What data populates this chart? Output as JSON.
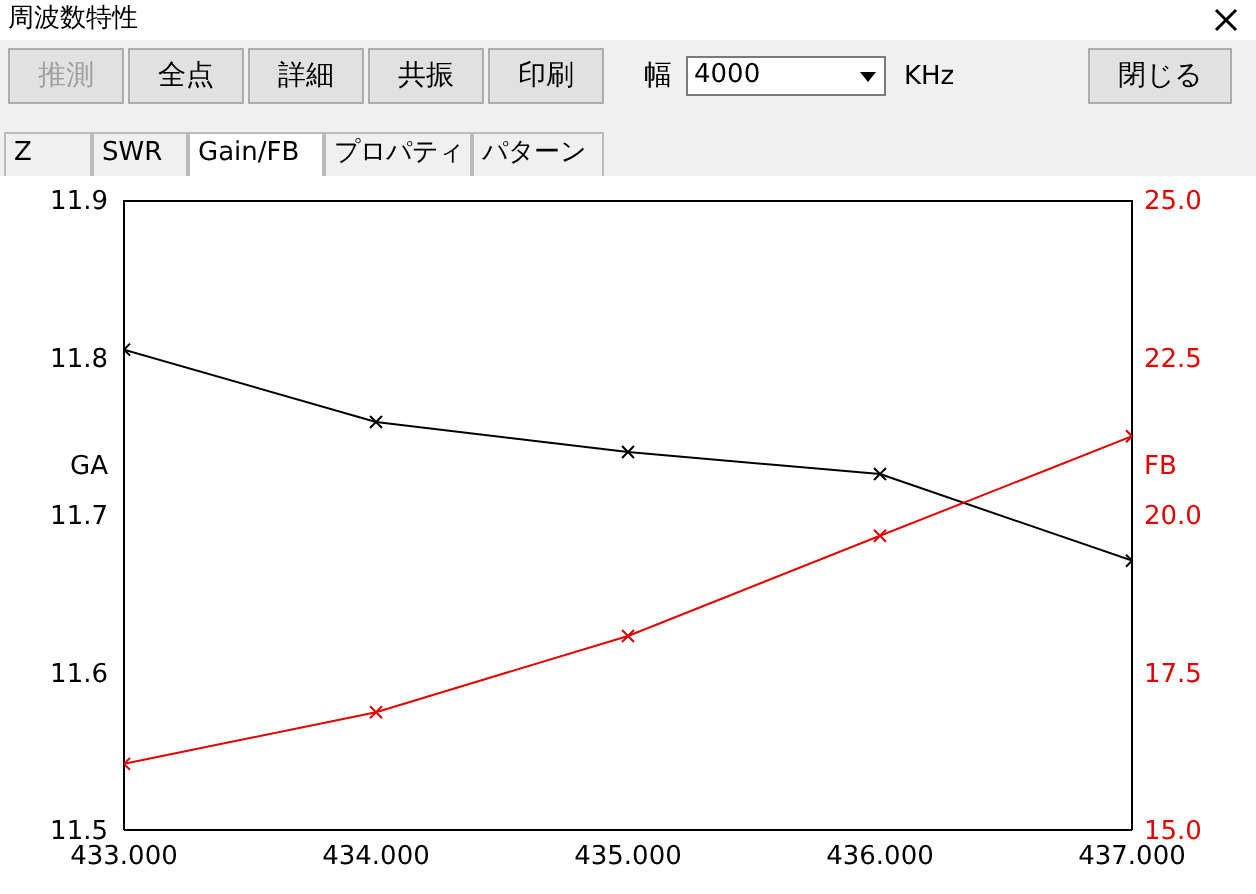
{
  "chart_data": {
    "type": "line",
    "title": "周波数特性",
    "ylabel": "GA",
    "y2label": "FB",
    "annotations": [
      "推測",
      "全点",
      "詳細",
      "共振",
      "印刷",
      "幅",
      "4000",
      "KHz",
      "閉じる",
      "Z",
      "SWR",
      "Gain/FB",
      "プロパティ",
      "パターン"
    ],
    "x": [
      433,
      434,
      435,
      436,
      437
    ],
    "xlim": [
      433,
      437
    ],
    "xticks": [
      {
        "value": 433,
        "label": "433.000"
      },
      {
        "value": 434,
        "label": "434.000"
      },
      {
        "value": 435,
        "label": "435.000"
      },
      {
        "value": 436,
        "label": "436.000"
      },
      {
        "value": 437,
        "label": "437.000"
      }
    ],
    "ylim": [
      11.5,
      11.9
    ],
    "yticks": [
      {
        "value": 11.5,
        "label": "11.5"
      },
      {
        "value": 11.6,
        "label": "11.6"
      },
      {
        "value": 11.7,
        "label": "11.7"
      },
      {
        "value": 11.8,
        "label": "11.8"
      },
      {
        "value": 11.9,
        "label": "11.9"
      }
    ],
    "y2lim": [
      15,
      25
    ],
    "y2ticks": [
      {
        "value": 15,
        "label": "15.0"
      },
      {
        "value": 17.5,
        "label": "17.5"
      },
      {
        "value": 20,
        "label": "20.0"
      },
      {
        "value": 22.5,
        "label": "22.5"
      },
      {
        "value": 25,
        "label": "25.0"
      }
    ],
    "marker": "cross",
    "grid": false,
    "legend": false,
    "series": [
      {
        "color": "#000000",
        "axis": "y",
        "values": [
          11.805,
          11.759,
          11.74,
          11.726,
          11.671
        ]
      },
      {
        "color": "#e00000",
        "axis": "y2",
        "values": [
          16.05,
          16.87,
          18.08,
          19.67,
          21.25
        ]
      }
    ]
  }
}
